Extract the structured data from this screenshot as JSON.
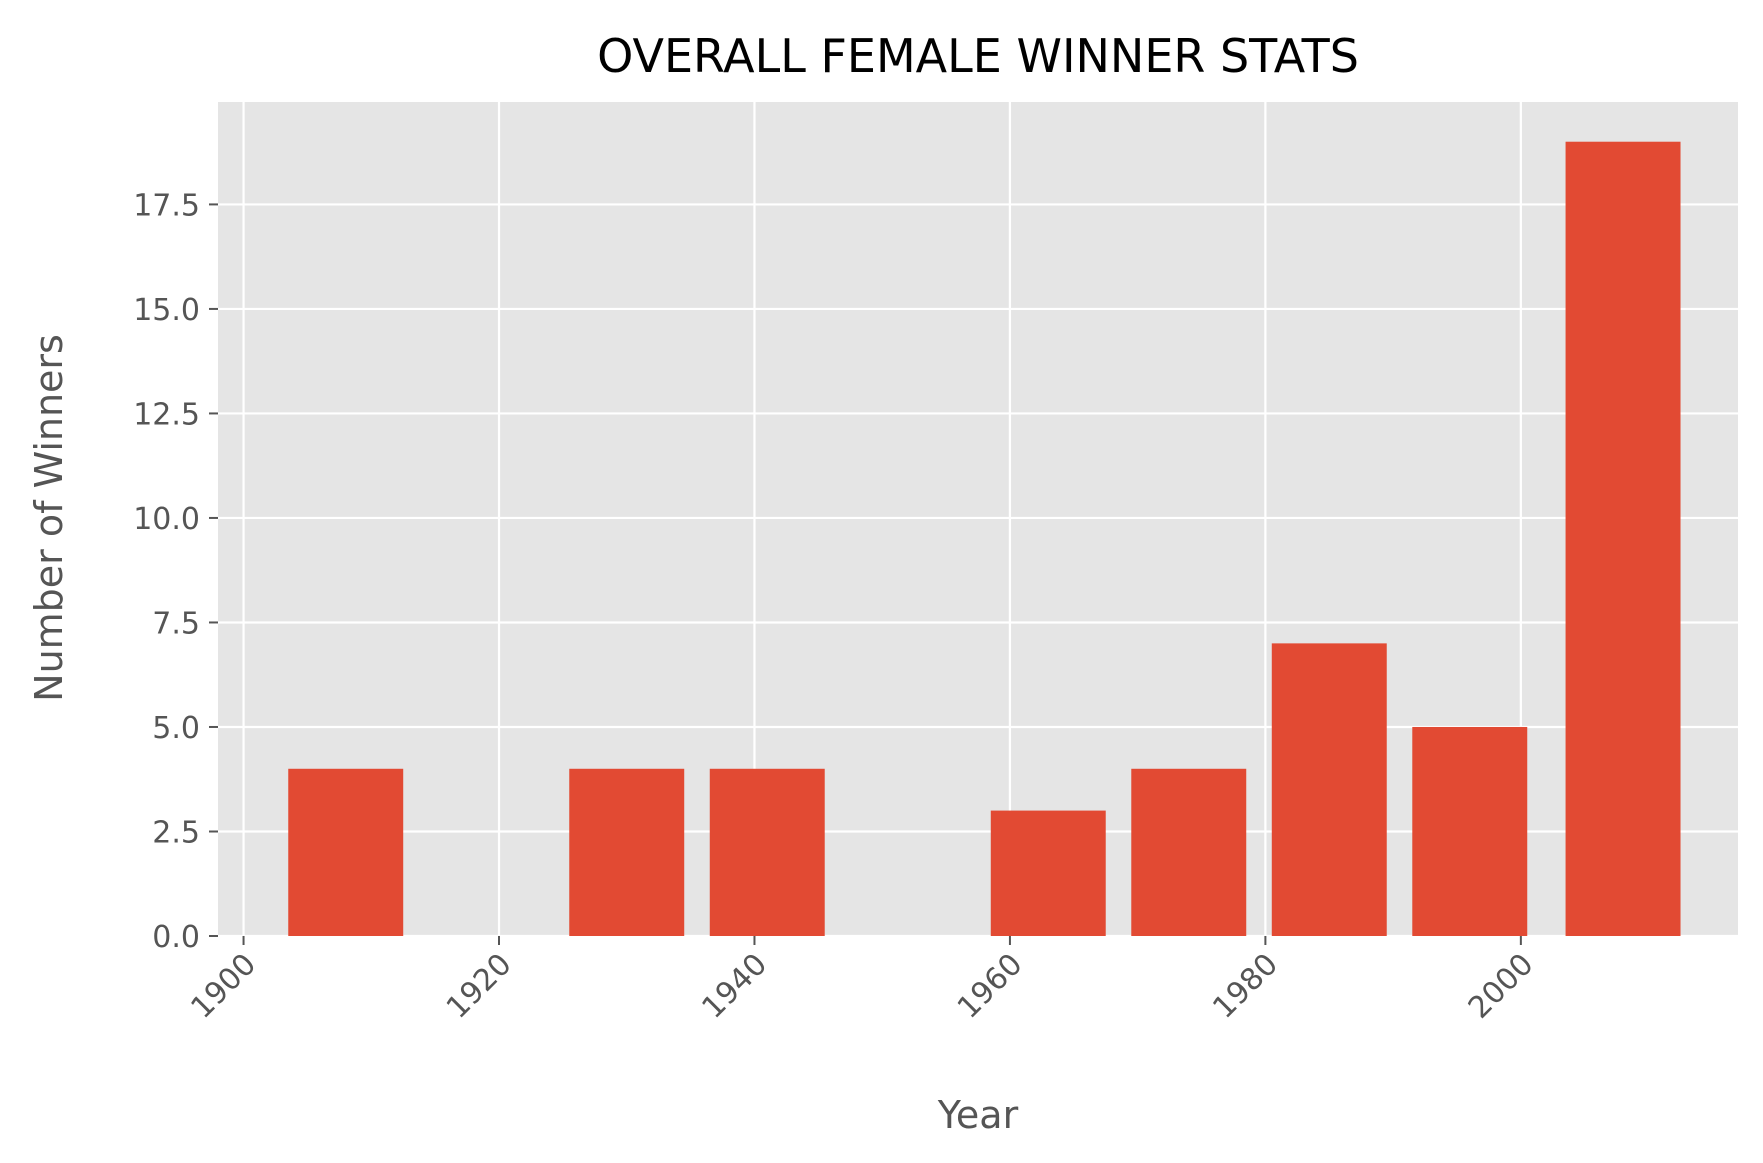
{
  "chart_data": {
    "type": "bar",
    "title": "OVERALL FEMALE WINNER STATS",
    "xlabel": "Year",
    "ylabel": "Number of Winners",
    "x": [
      1908,
      1918,
      1930,
      1941,
      1952,
      1963,
      1974,
      1985,
      1996,
      2008
    ],
    "values": [
      4,
      0,
      4,
      4,
      0,
      3,
      4,
      7,
      5,
      19
    ],
    "bar_width": 9,
    "xlim": [
      1898,
      2017
    ],
    "ylim": [
      0,
      19.95
    ],
    "xticks": [
      1900,
      1920,
      1940,
      1960,
      1980,
      2000
    ],
    "xtick_labels": [
      "1900",
      "1920",
      "1940",
      "1960",
      "1980",
      "2000"
    ],
    "yticks": [
      0,
      2.5,
      5,
      7.5,
      10,
      12.5,
      15,
      17.5
    ],
    "ytick_labels": [
      "0.0",
      "2.5",
      "5.0",
      "7.5",
      "10.0",
      "12.5",
      "15.0",
      "17.5"
    ],
    "grid": true,
    "colors": {
      "bar": "#e24a33",
      "background": "#e5e5e5",
      "grid": "#ffffff"
    }
  }
}
